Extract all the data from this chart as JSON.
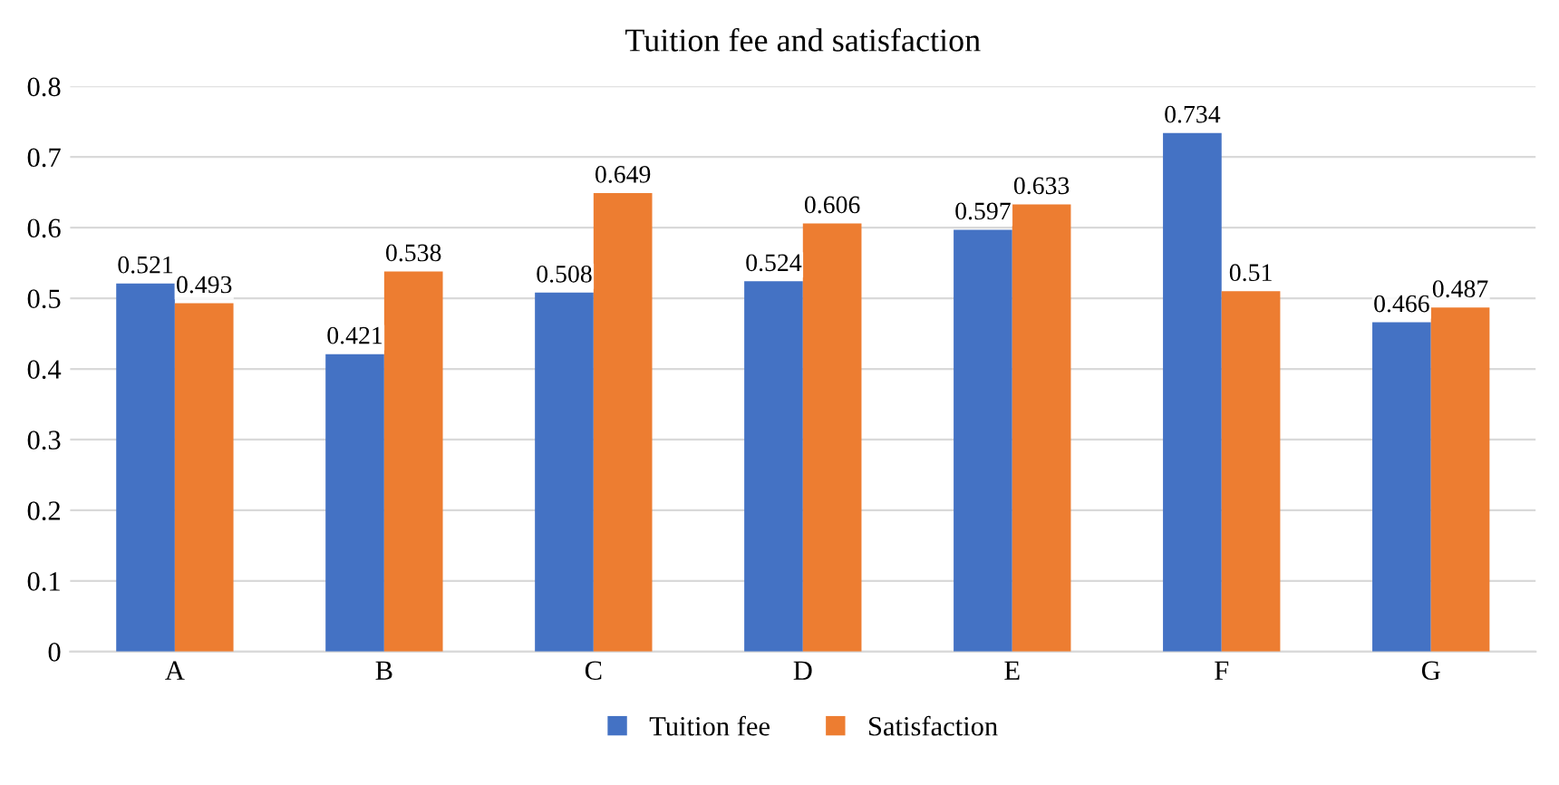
{
  "chart_data": {
    "type": "bar",
    "title": "Tuition fee and satisfaction",
    "categories": [
      "A",
      "B",
      "C",
      "D",
      "E",
      "F",
      "G"
    ],
    "series": [
      {
        "name": "Tuition fee",
        "color": "#4472c4",
        "values": [
          0.521,
          0.421,
          0.508,
          0.524,
          0.597,
          0.734,
          0.466
        ]
      },
      {
        "name": "Satisfaction",
        "color": "#ed7d31",
        "values": [
          0.493,
          0.538,
          0.649,
          0.606,
          0.633,
          0.51,
          0.487
        ]
      }
    ],
    "ylim": [
      0,
      0.8
    ],
    "yticks": [
      0,
      0.1,
      0.2,
      0.3,
      0.4,
      0.5,
      0.6,
      0.7,
      0.8
    ],
    "grid": "y",
    "legend": "bottom",
    "data_labels": true
  }
}
